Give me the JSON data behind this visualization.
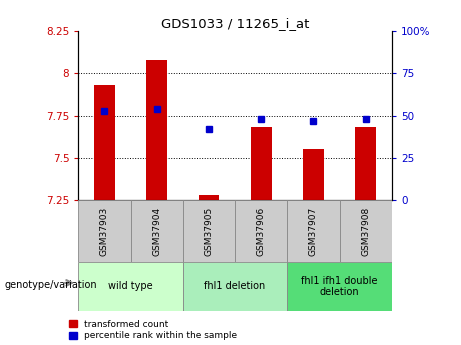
{
  "title": "GDS1033 / 11265_i_at",
  "samples": [
    "GSM37903",
    "GSM37904",
    "GSM37905",
    "GSM37906",
    "GSM37907",
    "GSM37908"
  ],
  "transformed_counts": [
    7.93,
    8.08,
    7.28,
    7.68,
    7.55,
    7.68
  ],
  "percentile_ranks": [
    7.78,
    7.79,
    7.67,
    7.73,
    7.72,
    7.73
  ],
  "ylim": [
    7.25,
    8.25
  ],
  "yticks": [
    7.25,
    7.5,
    7.75,
    8.0,
    8.25
  ],
  "ytick_labels": [
    "7.25",
    "7.5",
    "7.75",
    "8",
    "8.25"
  ],
  "y2lim": [
    0,
    100
  ],
  "y2ticks": [
    0,
    25,
    50,
    75,
    100
  ],
  "y2tick_labels": [
    "0",
    "25",
    "50",
    "75",
    "100%"
  ],
  "bar_color": "#cc0000",
  "dot_color": "#0000cc",
  "bar_bottom": 7.25,
  "grid_lines": [
    7.5,
    7.75,
    8.0
  ],
  "groups": [
    {
      "label": "wild type",
      "indices": [
        0,
        1
      ],
      "color": "#ccffcc"
    },
    {
      "label": "fhl1 deletion",
      "indices": [
        2,
        3
      ],
      "color": "#aaeebb"
    },
    {
      "label": "fhl1 ifh1 double\ndeletion",
      "indices": [
        4,
        5
      ],
      "color": "#55dd77"
    }
  ],
  "group_label_prefix": "genotype/variation",
  "legend_items": [
    {
      "label": "transformed count",
      "color": "#cc0000"
    },
    {
      "label": "percentile rank within the sample",
      "color": "#0000cc"
    }
  ],
  "background_color": "#ffffff",
  "tick_label_color_left": "#cc0000",
  "tick_label_color_right": "#0000cc",
  "sample_bg_color": "#cccccc",
  "bar_width": 0.4
}
